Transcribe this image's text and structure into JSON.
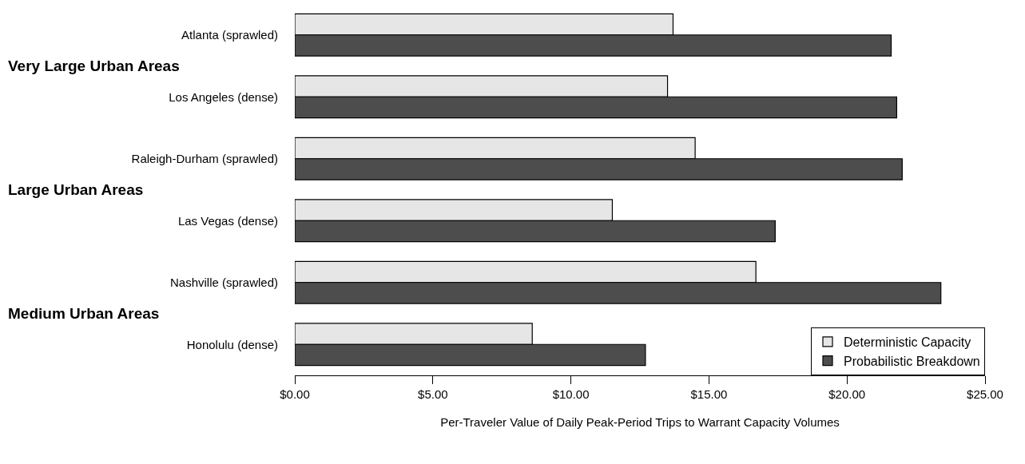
{
  "chart_data": {
    "type": "bar",
    "orientation": "horizontal",
    "xlabel": "Per-Traveler Value of Daily Peak-Period Trips to Warrant Capacity Volumes",
    "categories": [
      "Atlanta (sprawled)",
      "Los Angeles (dense)",
      "Raleigh-Durham (sprawled)",
      "Las Vegas (dense)",
      "Nashville (sprawled)",
      "Honolulu (dense)"
    ],
    "series": [
      {
        "name": "Deterministic Capacity",
        "color": "#e6e6e6",
        "values": [
          13.7,
          13.5,
          14.5,
          11.5,
          16.7,
          8.6
        ]
      },
      {
        "name": "Probabilistic Breakdown",
        "color": "#4d4d4d",
        "values": [
          21.6,
          21.8,
          22.0,
          17.4,
          23.4,
          12.7
        ]
      }
    ],
    "xlim": [
      0,
      25
    ],
    "xticks": [
      {
        "value": 0,
        "label": "$0.00"
      },
      {
        "value": 5,
        "label": "$5.00"
      },
      {
        "value": 10,
        "label": "$10.00"
      },
      {
        "value": 15,
        "label": "$15.00"
      },
      {
        "value": 20,
        "label": "$20.00"
      },
      {
        "value": 25,
        "label": "$25.00"
      }
    ],
    "annotations": [
      "Very Large Urban Areas",
      "Large Urban Areas",
      "Medium Urban Areas"
    ],
    "grid": false,
    "legend": "bottom right"
  }
}
